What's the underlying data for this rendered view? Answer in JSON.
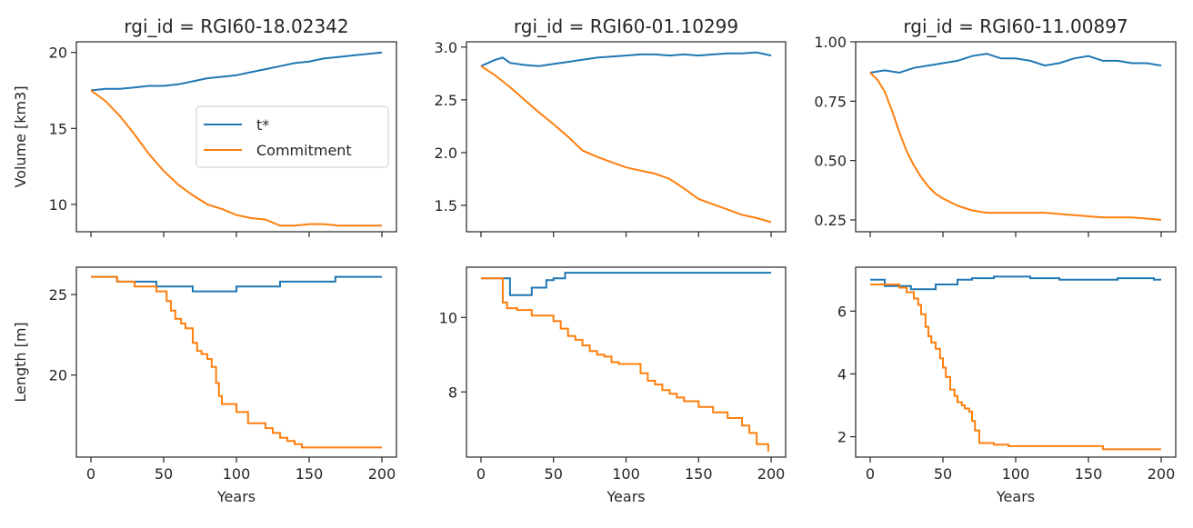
{
  "colors": {
    "tstar": "#1f77b4",
    "commitment": "#ff7f0e",
    "axis": "#262626"
  },
  "chart_data": [
    {
      "type": "line",
      "title": "rgi_id = RGI60-18.02342",
      "xlabel": "",
      "ylabel": "Volume [km3]",
      "xlim": [
        -10,
        210
      ],
      "ylim": [
        8.2,
        20.7
      ],
      "xticks": [
        0,
        50,
        100,
        150,
        200
      ],
      "xtick_labels": [
        "",
        "",
        "",
        "",
        ""
      ],
      "yticks": [
        10,
        15,
        20
      ],
      "ytick_labels": [
        "10",
        "15",
        "20"
      ],
      "legend": {
        "position": "right",
        "entries": [
          "t*",
          "Commitment"
        ]
      },
      "series": [
        {
          "name": "t*",
          "x": [
            0,
            10,
            20,
            30,
            40,
            50,
            60,
            70,
            80,
            90,
            100,
            110,
            120,
            130,
            140,
            150,
            160,
            170,
            180,
            190,
            200
          ],
          "y": [
            17.5,
            17.6,
            17.6,
            17.7,
            17.8,
            17.8,
            17.9,
            18.1,
            18.3,
            18.4,
            18.5,
            18.7,
            18.9,
            19.1,
            19.3,
            19.4,
            19.6,
            19.7,
            19.8,
            19.9,
            20.0
          ]
        },
        {
          "name": "Commitment",
          "x": [
            0,
            10,
            20,
            30,
            40,
            50,
            60,
            70,
            80,
            90,
            100,
            110,
            120,
            130,
            140,
            150,
            160,
            170,
            180,
            190,
            200
          ],
          "y": [
            17.5,
            16.8,
            15.8,
            14.6,
            13.3,
            12.2,
            11.3,
            10.6,
            10.0,
            9.7,
            9.3,
            9.1,
            9.0,
            8.6,
            8.6,
            8.7,
            8.7,
            8.6,
            8.6,
            8.6,
            8.6
          ]
        }
      ]
    },
    {
      "type": "line",
      "title": "rgi_id = RGI60-01.10299",
      "xlabel": "",
      "ylabel": "",
      "xlim": [
        -10,
        210
      ],
      "ylim": [
        1.25,
        3.05
      ],
      "xticks": [
        0,
        50,
        100,
        150,
        200
      ],
      "xtick_labels": [
        "",
        "",
        "",
        "",
        ""
      ],
      "yticks": [
        1.5,
        2.0,
        2.5,
        3.0
      ],
      "ytick_labels": [
        "1.5",
        "2.0",
        "2.5",
        "3.0"
      ],
      "series": [
        {
          "name": "t*",
          "x": [
            0,
            5,
            10,
            15,
            20,
            30,
            40,
            50,
            60,
            70,
            80,
            90,
            100,
            110,
            120,
            130,
            140,
            150,
            160,
            170,
            180,
            190,
            200
          ],
          "y": [
            2.82,
            2.85,
            2.88,
            2.9,
            2.85,
            2.83,
            2.82,
            2.84,
            2.86,
            2.88,
            2.9,
            2.91,
            2.92,
            2.93,
            2.93,
            2.92,
            2.93,
            2.92,
            2.93,
            2.94,
            2.94,
            2.95,
            2.92
          ]
        },
        {
          "name": "Commitment",
          "x": [
            0,
            10,
            20,
            30,
            40,
            50,
            60,
            70,
            80,
            90,
            100,
            110,
            120,
            130,
            140,
            150,
            160,
            170,
            180,
            190,
            200
          ],
          "y": [
            2.82,
            2.73,
            2.62,
            2.5,
            2.38,
            2.27,
            2.15,
            2.02,
            1.96,
            1.91,
            1.86,
            1.83,
            1.8,
            1.75,
            1.66,
            1.56,
            1.51,
            1.46,
            1.41,
            1.38,
            1.34
          ]
        }
      ]
    },
    {
      "type": "line",
      "title": "rgi_id = RGI60-11.00897",
      "xlabel": "",
      "ylabel": "",
      "xlim": [
        -10,
        210
      ],
      "ylim": [
        0.2,
        1.0
      ],
      "xticks": [
        0,
        50,
        100,
        150,
        200
      ],
      "xtick_labels": [
        "",
        "",
        "",
        "",
        ""
      ],
      "yticks": [
        0.25,
        0.5,
        0.75,
        1.0
      ],
      "ytick_labels": [
        "0.25",
        "0.50",
        "0.75",
        "1.00"
      ],
      "series": [
        {
          "name": "t*",
          "x": [
            0,
            10,
            20,
            30,
            40,
            50,
            60,
            70,
            80,
            90,
            100,
            110,
            120,
            130,
            140,
            150,
            160,
            170,
            180,
            190,
            200
          ],
          "y": [
            0.87,
            0.88,
            0.87,
            0.89,
            0.9,
            0.91,
            0.92,
            0.94,
            0.95,
            0.93,
            0.93,
            0.92,
            0.9,
            0.91,
            0.93,
            0.94,
            0.92,
            0.92,
            0.91,
            0.91,
            0.9
          ]
        },
        {
          "name": "Commitment",
          "x": [
            0,
            5,
            10,
            15,
            20,
            25,
            30,
            35,
            40,
            45,
            50,
            60,
            70,
            80,
            90,
            100,
            120,
            140,
            160,
            180,
            200
          ],
          "y": [
            0.87,
            0.84,
            0.79,
            0.71,
            0.62,
            0.54,
            0.48,
            0.43,
            0.39,
            0.36,
            0.34,
            0.31,
            0.29,
            0.28,
            0.28,
            0.28,
            0.28,
            0.27,
            0.26,
            0.26,
            0.25
          ]
        }
      ]
    },
    {
      "type": "line",
      "title": "",
      "xlabel": "Years",
      "ylabel": "Length [m]",
      "xlim": [
        -10,
        210
      ],
      "ylim": [
        14.9,
        26.7
      ],
      "xticks": [
        0,
        50,
        100,
        150,
        200
      ],
      "xtick_labels": [
        "0",
        "50",
        "100",
        "150",
        "200"
      ],
      "yticks": [
        20,
        25
      ],
      "ytick_labels": [
        "20",
        "25"
      ],
      "step": true,
      "series": [
        {
          "name": "t*",
          "x": [
            0,
            18,
            45,
            70,
            100,
            130,
            168,
            200
          ],
          "y": [
            26.1,
            25.8,
            25.5,
            25.2,
            25.5,
            25.8,
            26.1,
            26.1
          ]
        },
        {
          "name": "Commitment",
          "x": [
            0,
            18,
            30,
            45,
            52,
            55,
            58,
            62,
            65,
            70,
            73,
            76,
            80,
            83,
            86,
            88,
            90,
            100,
            108,
            120,
            125,
            130,
            135,
            140,
            145,
            200
          ],
          "y": [
            26.1,
            25.8,
            25.5,
            25.2,
            24.6,
            24.0,
            23.5,
            23.2,
            22.9,
            22.0,
            21.5,
            21.3,
            21.0,
            20.5,
            19.5,
            18.7,
            18.2,
            17.7,
            17.0,
            16.7,
            16.4,
            16.1,
            15.9,
            15.7,
            15.5,
            15.5
          ]
        }
      ]
    },
    {
      "type": "line",
      "title": "",
      "xlabel": "Years",
      "ylabel": "",
      "xlim": [
        -10,
        210
      ],
      "ylim": [
        6.25,
        11.35
      ],
      "xticks": [
        0,
        50,
        100,
        150,
        200
      ],
      "xtick_labels": [
        "0",
        "50",
        "100",
        "150",
        "200"
      ],
      "yticks": [
        8,
        10
      ],
      "ytick_labels": [
        "8",
        "10"
      ],
      "step": true,
      "series": [
        {
          "name": "t*",
          "x": [
            0,
            20,
            35,
            45,
            50,
            58,
            200
          ],
          "y": [
            11.05,
            10.6,
            10.8,
            11.0,
            11.05,
            11.2,
            11.2
          ]
        },
        {
          "name": "Commitment",
          "x": [
            0,
            15,
            18,
            25,
            35,
            50,
            55,
            60,
            65,
            70,
            75,
            80,
            85,
            90,
            95,
            110,
            115,
            120,
            125,
            130,
            135,
            140,
            150,
            160,
            170,
            180,
            185,
            190,
            198
          ],
          "y": [
            11.05,
            10.4,
            10.25,
            10.2,
            10.05,
            9.9,
            9.7,
            9.5,
            9.4,
            9.25,
            9.1,
            9.0,
            8.95,
            8.8,
            8.75,
            8.5,
            8.3,
            8.2,
            8.05,
            7.95,
            7.85,
            7.75,
            7.6,
            7.45,
            7.3,
            7.1,
            6.9,
            6.6,
            6.4
          ]
        }
      ]
    },
    {
      "type": "line",
      "title": "",
      "xlabel": "Years",
      "ylabel": "",
      "xlim": [
        -10,
        210
      ],
      "ylim": [
        1.35,
        7.4
      ],
      "xticks": [
        0,
        50,
        100,
        150,
        200
      ],
      "xtick_labels": [
        "0",
        "50",
        "100",
        "150",
        "200"
      ],
      "yticks": [
        2,
        4,
        6
      ],
      "ytick_labels": [
        "2",
        "4",
        "6"
      ],
      "step": true,
      "series": [
        {
          "name": "t*",
          "x": [
            0,
            10,
            28,
            45,
            60,
            70,
            85,
            110,
            130,
            150,
            170,
            195,
            200
          ],
          "y": [
            7.0,
            6.8,
            6.7,
            6.85,
            7.0,
            7.05,
            7.1,
            7.05,
            7.0,
            7.0,
            7.05,
            7.0,
            7.0
          ]
        },
        {
          "name": "Commitment",
          "x": [
            0,
            20,
            25,
            30,
            33,
            35,
            38,
            40,
            42,
            45,
            48,
            50,
            52,
            55,
            58,
            60,
            63,
            65,
            68,
            70,
            72,
            75,
            85,
            95,
            110,
            130,
            160,
            200
          ],
          "y": [
            6.85,
            6.75,
            6.6,
            6.4,
            6.2,
            5.9,
            5.5,
            5.2,
            5.0,
            4.8,
            4.5,
            4.2,
            3.9,
            3.5,
            3.3,
            3.1,
            3.0,
            2.9,
            2.8,
            2.5,
            2.2,
            1.8,
            1.75,
            1.7,
            1.7,
            1.7,
            1.6,
            1.6
          ]
        }
      ]
    }
  ]
}
